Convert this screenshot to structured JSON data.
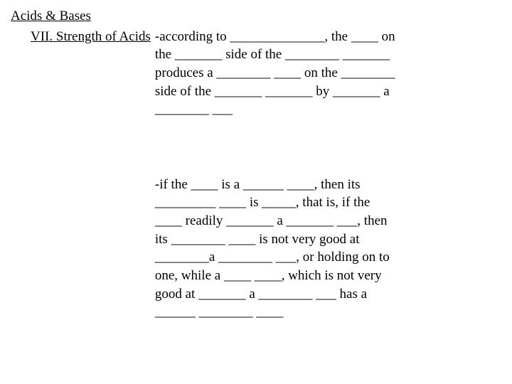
{
  "title": "Acids & Bases",
  "section_label": "VII.  Strength of Acids",
  "para1_l1": "-according to ______________, the ____ on",
  "para1_l2": "the _______ side of the ________ _______",
  "para1_l3": "produces a ________ ____ on the ________",
  "para1_l4": "side of the _______ _______ by _______ a",
  "para1_l5": "________ ___",
  "para2_l1": "-if the ____ is a ______ ____, then its",
  "para2_l2": "_________ ____ is _____, that is, if the",
  "para2_l3": "____ readily _______ a _______ ___, then",
  "para2_l4": "its ________ ____ is not very good at",
  "para2_l5": "________a ________ ___, or holding on to",
  "para2_l6": "one, while a ____ ____, which is not very",
  "para2_l7": "good at _______ a ________ ___ has a",
  "para2_l8": "______ ________ ____"
}
